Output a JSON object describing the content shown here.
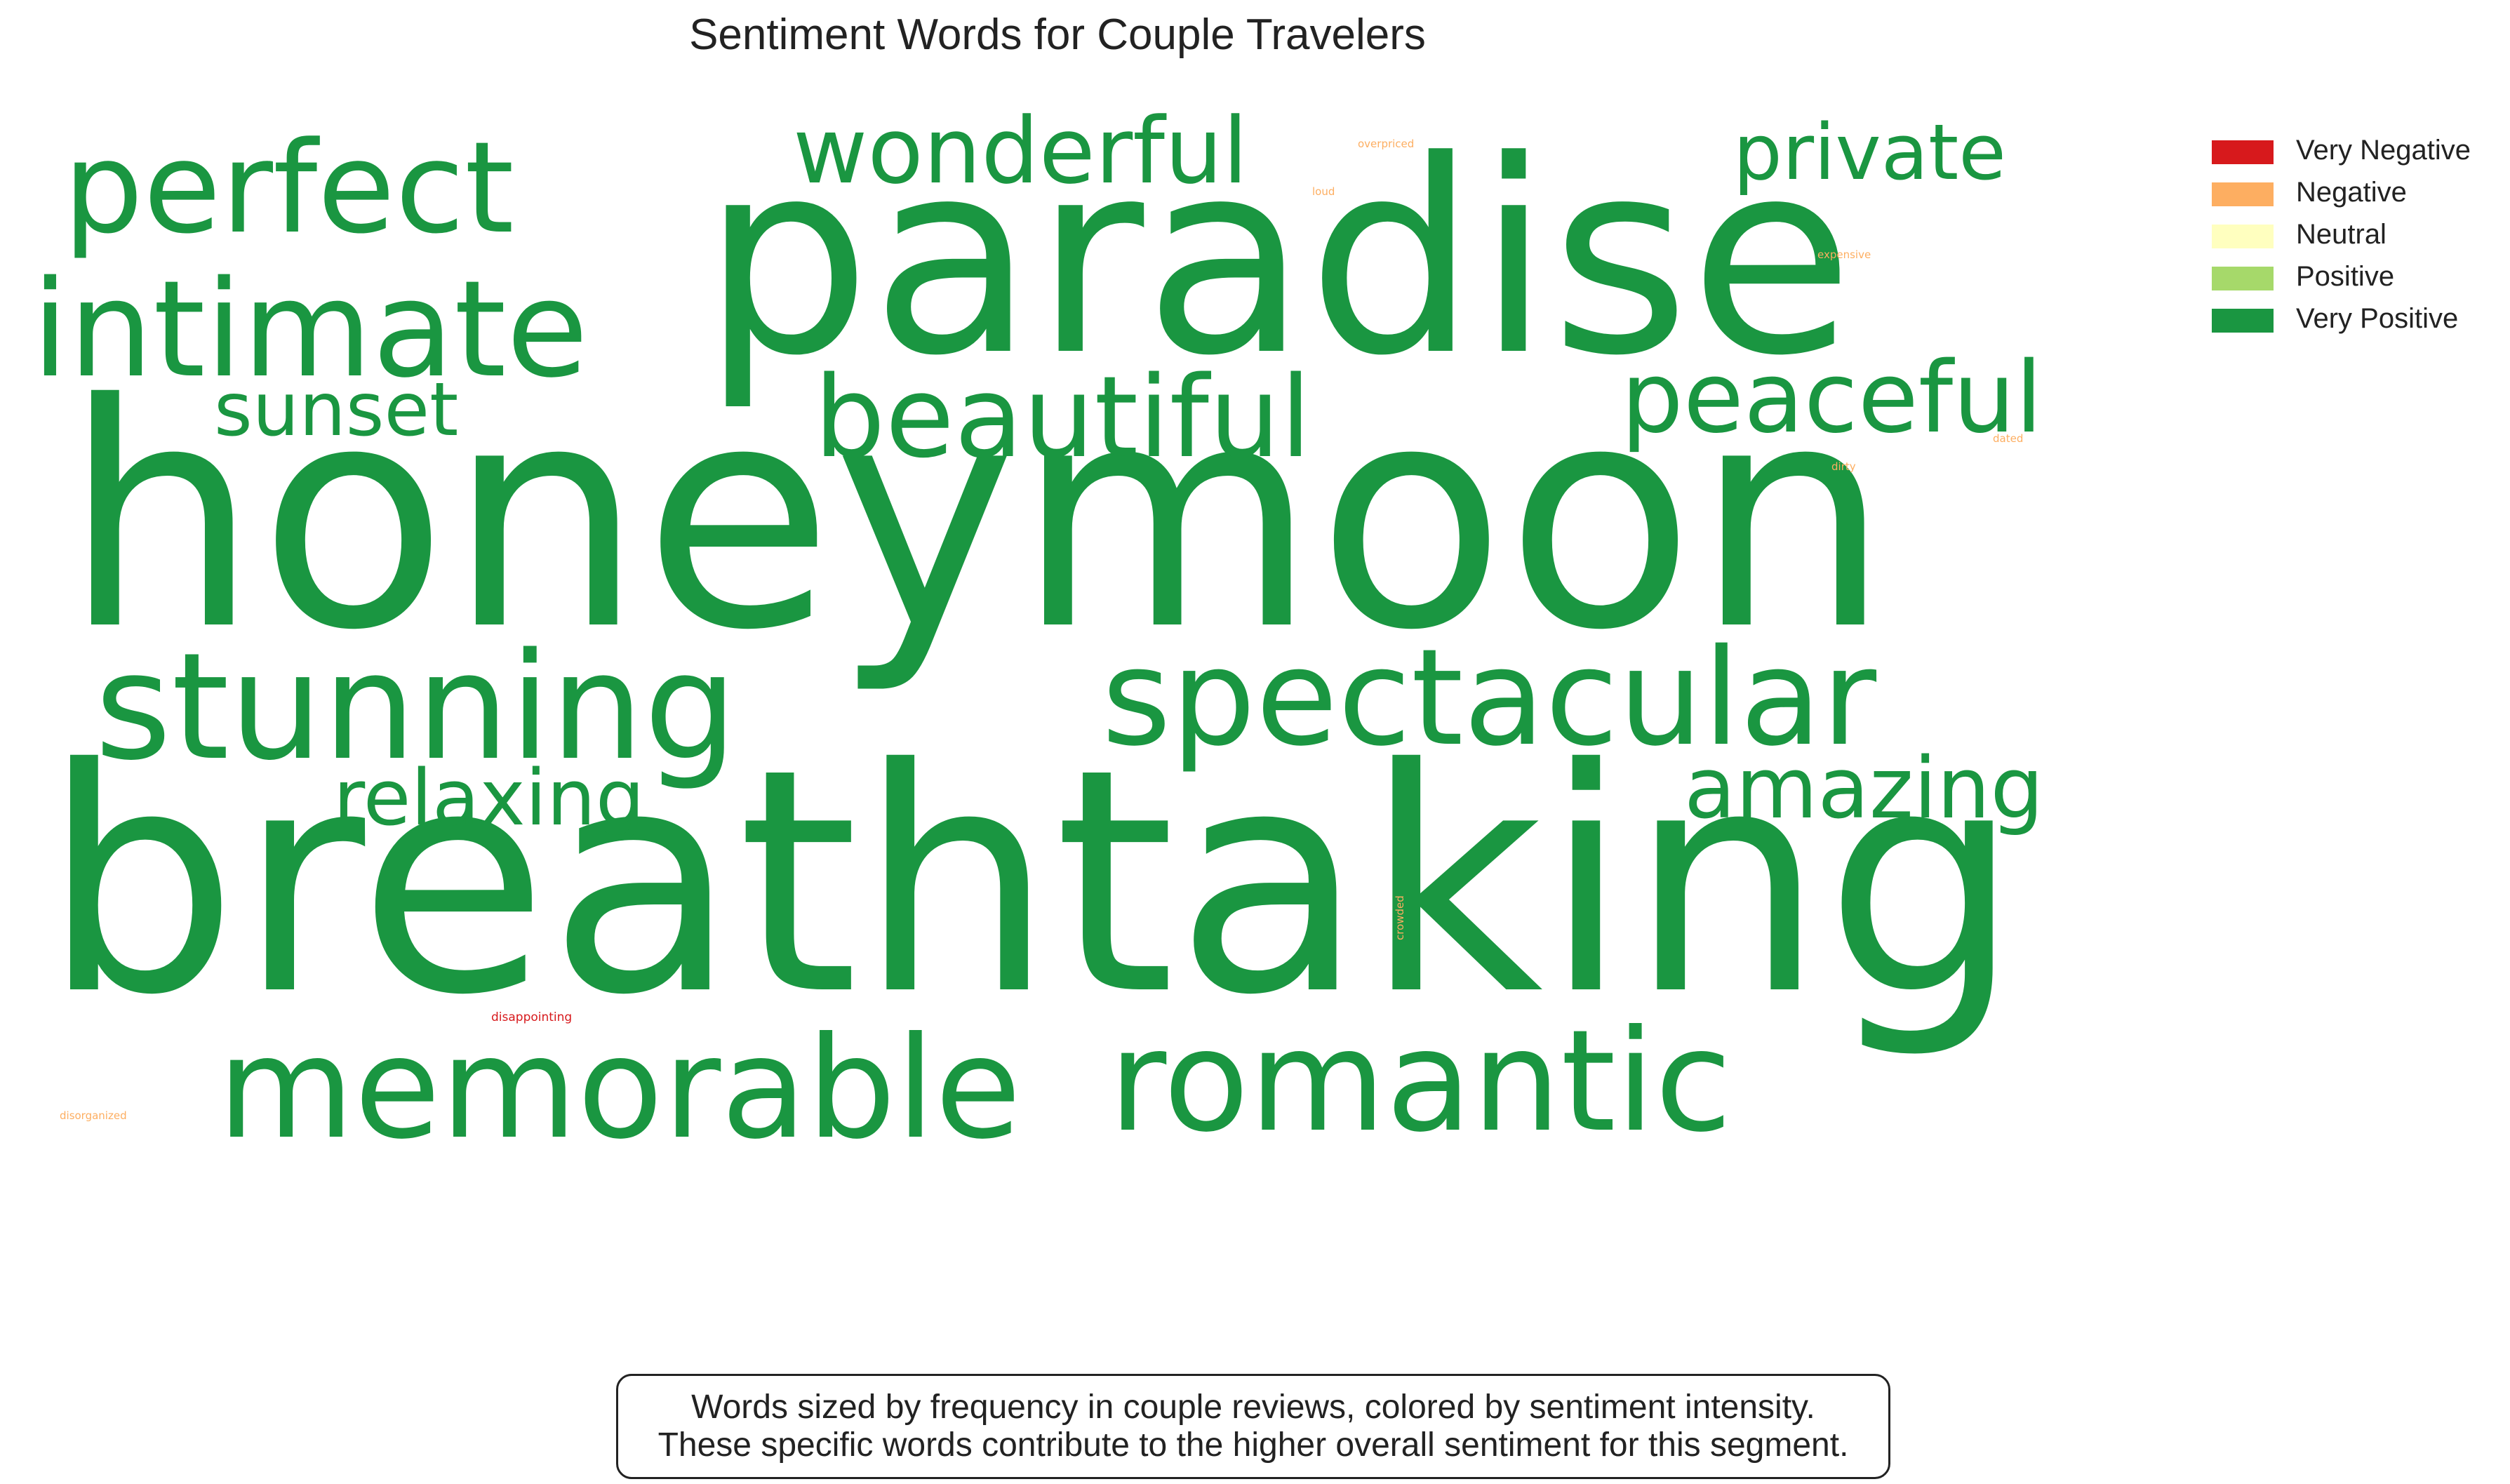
{
  "chart_data": {
    "type": "wordcloud",
    "title": "Sentiment Words for Couple Travelers",
    "legend": {
      "placement": "top-right",
      "entries": [
        {
          "label": "Very Negative",
          "color": "#d7191c"
        },
        {
          "label": "Negative",
          "color": "#fdae61"
        },
        {
          "label": "Neutral",
          "color": "#ffffbf"
        },
        {
          "label": "Positive",
          "color": "#a6d96a"
        },
        {
          "label": "Very Positive",
          "color": "#1a9641"
        }
      ]
    },
    "words": [
      {
        "text": "breathtaking",
        "sentiment": "Very Positive"
      },
      {
        "text": "honeymoon",
        "sentiment": "Very Positive"
      },
      {
        "text": "paradise",
        "sentiment": "Very Positive"
      },
      {
        "text": "romantic",
        "sentiment": "Very Positive"
      },
      {
        "text": "memorable",
        "sentiment": "Very Positive"
      },
      {
        "text": "stunning",
        "sentiment": "Very Positive"
      },
      {
        "text": "spectacular",
        "sentiment": "Very Positive"
      },
      {
        "text": "intimate",
        "sentiment": "Very Positive"
      },
      {
        "text": "perfect",
        "sentiment": "Very Positive"
      },
      {
        "text": "beautiful",
        "sentiment": "Very Positive"
      },
      {
        "text": "wonderful",
        "sentiment": "Very Positive"
      },
      {
        "text": "peaceful",
        "sentiment": "Very Positive"
      },
      {
        "text": "private",
        "sentiment": "Very Positive"
      },
      {
        "text": "amazing",
        "sentiment": "Very Positive"
      },
      {
        "text": "relaxing",
        "sentiment": "Very Positive"
      },
      {
        "text": "sunset",
        "sentiment": "Very Positive"
      },
      {
        "text": "overpriced",
        "sentiment": "Negative"
      },
      {
        "text": "loud",
        "sentiment": "Negative"
      },
      {
        "text": "expensive",
        "sentiment": "Negative"
      },
      {
        "text": "dated",
        "sentiment": "Negative"
      },
      {
        "text": "dirty",
        "sentiment": "Negative"
      },
      {
        "text": "crowded",
        "sentiment": "Negative"
      },
      {
        "text": "disorganized",
        "sentiment": "Negative"
      },
      {
        "text": "disappointing",
        "sentiment": "Very Negative"
      }
    ],
    "annotation": [
      "Words sized by frequency in couple reviews, colored by sentiment intensity.",
      "These specific words contribute to the higher overall sentiment for this segment."
    ]
  }
}
